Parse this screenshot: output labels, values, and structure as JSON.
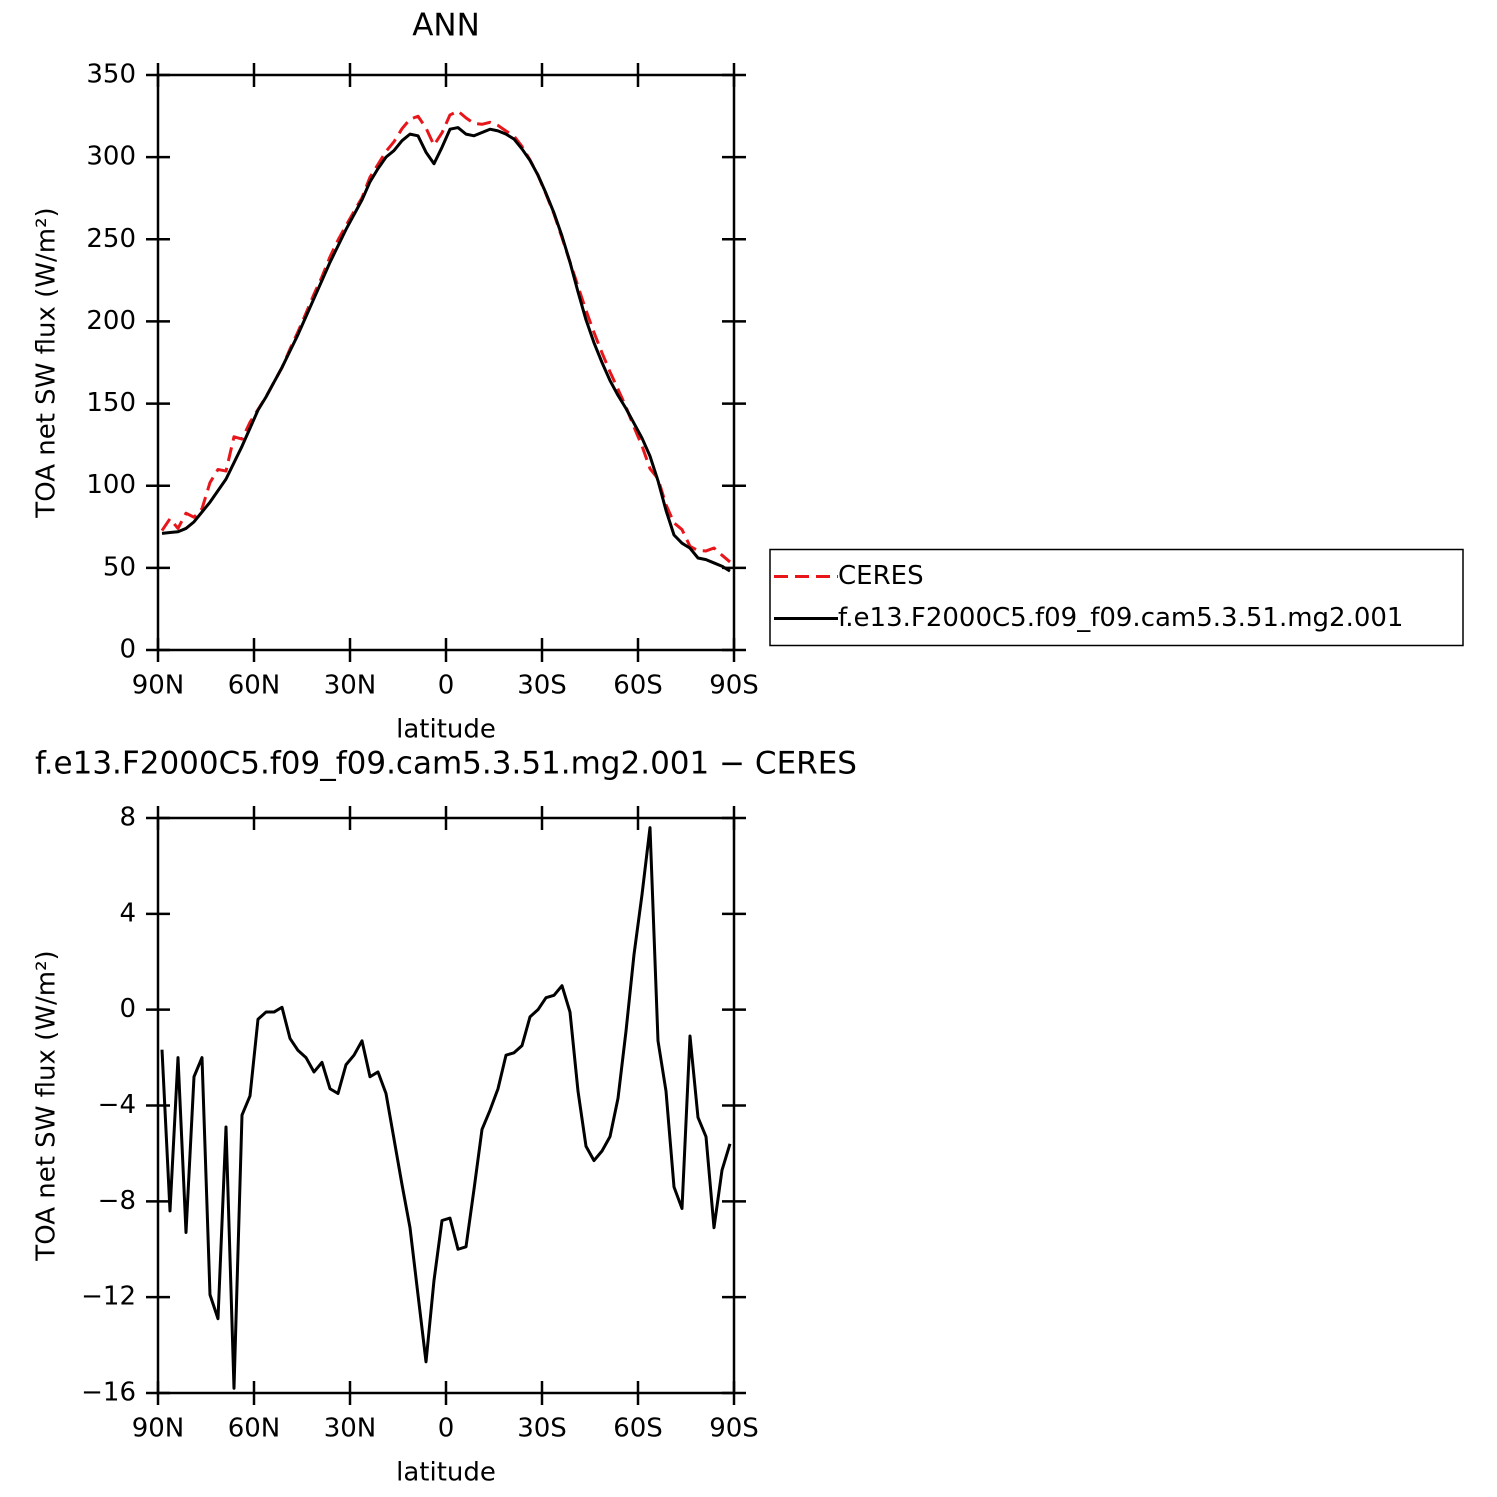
{
  "chart_data": [
    {
      "type": "line",
      "title": "ANN",
      "ylabel": "TOA net SW flux (W/m²)",
      "xlabel": "latitude",
      "x": [
        88.75,
        86.25,
        83.75,
        81.25,
        78.75,
        76.25,
        73.75,
        71.25,
        68.75,
        66.25,
        63.75,
        61.25,
        58.75,
        56.25,
        53.75,
        51.25,
        48.75,
        46.25,
        43.75,
        41.25,
        38.75,
        36.25,
        33.75,
        31.25,
        28.75,
        26.25,
        23.75,
        21.25,
        18.75,
        16.25,
        13.75,
        11.25,
        8.75,
        6.25,
        3.75,
        1.25,
        -1.25,
        -3.75,
        -6.25,
        -8.75,
        -11.25,
        -13.75,
        -16.25,
        -18.75,
        -21.25,
        -23.75,
        -26.25,
        -28.75,
        -31.25,
        -33.75,
        -36.25,
        -38.75,
        -41.25,
        -43.75,
        -46.25,
        -48.75,
        -51.25,
        -53.75,
        -56.25,
        -58.75,
        -61.25,
        -63.75,
        -66.25,
        -68.75,
        -71.25,
        -73.75,
        -76.25,
        -78.75,
        -81.25,
        -83.75,
        -86.25,
        -88.75
      ],
      "series": [
        {
          "name": "CERES",
          "color": "#e8161b",
          "line_style": "dashed",
          "values": [
            72.7,
            79.9,
            74,
            83.3,
            80.8,
            86,
            101.9,
            109.9,
            108.9,
            129.8,
            128.4,
            138.6,
            146.4,
            154.1,
            163.1,
            171.9,
            183.2,
            193.7,
            205,
            216.6,
            227.2,
            239.3,
            249.5,
            258.3,
            266.9,
            275.3,
            287.8,
            295.6,
            303.5,
            309.4,
            317.3,
            323.1,
            324.9,
            317.7,
            307.3,
            314.8,
            325.7,
            328,
            323.9,
            320.5,
            320,
            321.2,
            319.3,
            315.9,
            312.8,
            306.5,
            298.3,
            289,
            277.5,
            265.4,
            251,
            236.1,
            221.4,
            206.7,
            193.3,
            180.9,
            169.3,
            158.7,
            147.9,
            135.7,
            124.2,
            110.4,
            104.3,
            88.4,
            77.4,
            73.3,
            63.1,
            60.5,
            60.3,
            62.1,
            57.7,
            53.6
          ]
        },
        {
          "name": "f.e13.F2000C5.f09_f09.cam5.3.51.mg2.001",
          "color": "#000000",
          "line_style": "solid",
          "values": [
            71,
            71.5,
            72,
            74,
            78,
            84,
            90,
            97,
            104,
            114,
            124,
            135,
            146,
            154,
            163,
            172,
            182,
            192,
            203,
            214,
            225,
            236,
            246,
            256,
            265,
            274,
            285,
            293,
            300,
            304,
            310,
            314,
            313,
            303,
            296,
            306,
            317,
            318,
            314,
            313,
            315,
            317,
            316,
            314,
            311,
            305,
            298,
            289,
            278,
            266,
            252,
            236,
            218,
            201,
            187,
            175,
            164,
            155,
            147,
            138,
            129,
            118,
            103,
            85,
            70,
            65,
            62,
            56,
            55,
            53,
            51,
            48
          ]
        }
      ],
      "xlim": [
        90,
        -90
      ],
      "xticks": [
        {
          "value": 90,
          "label": "90N"
        },
        {
          "value": 60,
          "label": "60N"
        },
        {
          "value": 30,
          "label": "30N"
        },
        0,
        {
          "value": -30,
          "label": "30S"
        },
        {
          "value": -60,
          "label": "60S"
        },
        {
          "value": -90,
          "label": "90S"
        }
      ],
      "ylim": [
        0,
        350
      ],
      "yticks": [
        0,
        50,
        100,
        150,
        200,
        250,
        300,
        350
      ],
      "legend_position": "right"
    },
    {
      "type": "line",
      "title": "f.e13.F2000C5.f09_f09.cam5.3.51.mg2.001 − CERES",
      "ylabel": "TOA net SW flux (W/m²)",
      "xlabel": "latitude",
      "x": [
        88.75,
        86.25,
        83.75,
        81.25,
        78.75,
        76.25,
        73.75,
        71.25,
        68.75,
        66.25,
        63.75,
        61.25,
        58.75,
        56.25,
        53.75,
        51.25,
        48.75,
        46.25,
        43.75,
        41.25,
        38.75,
        36.25,
        33.75,
        31.25,
        28.75,
        26.25,
        23.75,
        21.25,
        18.75,
        16.25,
        13.75,
        11.25,
        8.75,
        6.25,
        3.75,
        1.25,
        -1.25,
        -3.75,
        -6.25,
        -8.75,
        -11.25,
        -13.75,
        -16.25,
        -18.75,
        -21.25,
        -23.75,
        -26.25,
        -28.75,
        -31.25,
        -33.75,
        -36.25,
        -38.75,
        -41.25,
        -43.75,
        -46.25,
        -48.75,
        -51.25,
        -53.75,
        -56.25,
        -58.75,
        -61.25,
        -63.75,
        -66.25,
        -68.75,
        -71.25,
        -73.75,
        -76.25,
        -78.75,
        -81.25,
        -83.75,
        -86.25,
        -88.75
      ],
      "values": [
        -1.67,
        -8.4,
        -2,
        -9.3,
        -2.8,
        -2,
        -11.9,
        -12.9,
        -4.9,
        -15.8,
        -4.4,
        -3.6,
        -0.4,
        -0.1,
        -0.1,
        0.1,
        -1.2,
        -1.7,
        -2,
        -2.6,
        -2.2,
        -3.3,
        -3.5,
        -2.3,
        -1.9,
        -1.3,
        -2.8,
        -2.6,
        -3.5,
        -5.4,
        -7.3,
        -9.1,
        -11.9,
        -14.7,
        -11.3,
        -8.8,
        -8.7,
        -10,
        -9.9,
        -7.5,
        -5,
        -4.2,
        -3.3,
        -1.9,
        -1.8,
        -1.5,
        -0.3,
        0,
        0.5,
        0.6,
        1,
        -0.1,
        -3.4,
        -5.7,
        -6.3,
        -5.9,
        -5.3,
        -3.7,
        -0.9,
        2.3,
        4.8,
        7.6,
        -1.3,
        -3.4,
        -7.4,
        -8.3,
        -1.1,
        -4.5,
        -5.3,
        -9.1,
        -6.7,
        -5.6
      ],
      "color": "#000000",
      "line_style": "solid",
      "xlim": [
        90,
        -90
      ],
      "xticks": [
        {
          "value": 90,
          "label": "90N"
        },
        {
          "value": 60,
          "label": "60N"
        },
        {
          "value": 30,
          "label": "30N"
        },
        0,
        {
          "value": -30,
          "label": "30S"
        },
        {
          "value": -60,
          "label": "60S"
        },
        {
          "value": -90,
          "label": "90S"
        }
      ],
      "ylim": [
        -16,
        8
      ],
      "yticks": [
        {
          "value": 8,
          "label": "8"
        },
        {
          "value": 4,
          "label": "4"
        },
        0,
        {
          "value": -4,
          "label": "−4"
        },
        {
          "value": -8,
          "label": "−8"
        },
        {
          "value": -12,
          "label": "−12"
        },
        {
          "value": -16,
          "label": "−16"
        }
      ]
    }
  ]
}
